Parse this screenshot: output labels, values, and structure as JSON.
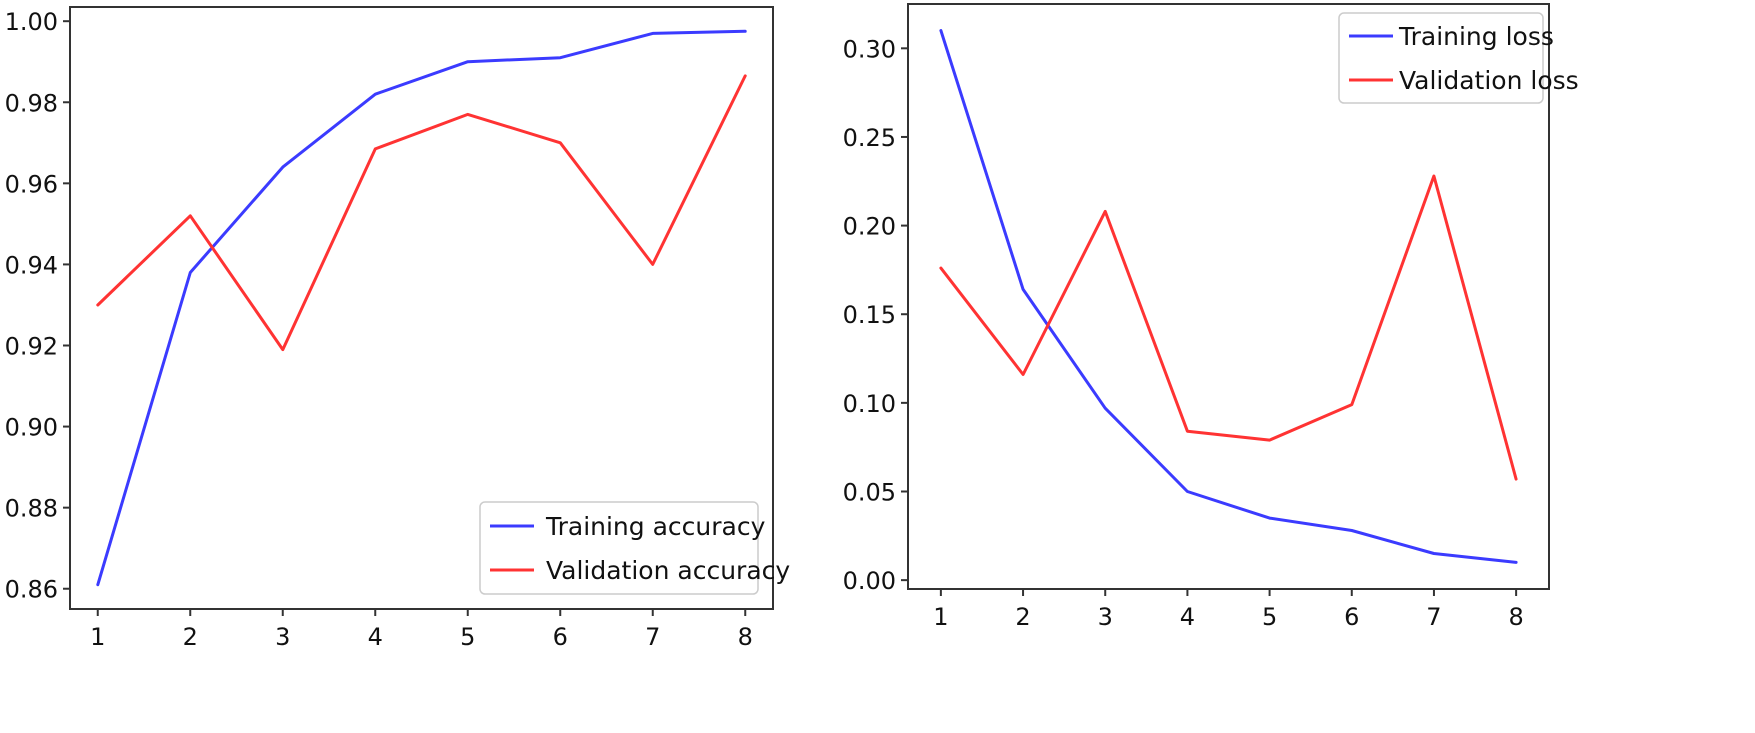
{
  "chart_data": [
    {
      "type": "line",
      "title": "",
      "xlabel": "",
      "ylabel": "",
      "x": [
        1,
        2,
        3,
        4,
        5,
        6,
        7,
        8
      ],
      "xlim": [
        0.7,
        8.3
      ],
      "ylim": [
        0.855,
        1.0035
      ],
      "yticks": [
        0.86,
        0.88,
        0.9,
        0.92,
        0.94,
        0.96,
        0.98,
        1.0
      ],
      "ytick_labels": [
        "0.86",
        "0.88",
        "0.90",
        "0.92",
        "0.94",
        "0.96",
        "0.98",
        "1.00"
      ],
      "legend_position": "lower-right",
      "series": [
        {
          "name": "Training accuracy",
          "color": "#3b3bff",
          "values": [
            0.861,
            0.938,
            0.964,
            0.982,
            0.99,
            0.991,
            0.997,
            0.9975
          ]
        },
        {
          "name": "Validation accuracy",
          "color": "#ff3333",
          "values": [
            0.93,
            0.952,
            0.919,
            0.9685,
            0.977,
            0.97,
            0.94,
            0.9865
          ]
        }
      ]
    },
    {
      "type": "line",
      "title": "",
      "xlabel": "",
      "ylabel": "",
      "x": [
        1,
        2,
        3,
        4,
        5,
        6,
        7,
        8
      ],
      "xlim": [
        0.6,
        8.4
      ],
      "ylim": [
        -0.005,
        0.325
      ],
      "yticks": [
        0.0,
        0.05,
        0.1,
        0.15,
        0.2,
        0.25,
        0.3
      ],
      "ytick_labels": [
        "0.00",
        "0.05",
        "0.10",
        "0.15",
        "0.20",
        "0.25",
        "0.30"
      ],
      "legend_position": "upper-right",
      "series": [
        {
          "name": "Training loss",
          "color": "#3b3bff",
          "values": [
            0.31,
            0.164,
            0.097,
            0.05,
            0.035,
            0.028,
            0.015,
            0.01
          ]
        },
        {
          "name": "Validation loss",
          "color": "#ff3333",
          "values": [
            0.176,
            0.116,
            0.208,
            0.084,
            0.079,
            0.099,
            0.228,
            0.057
          ]
        }
      ]
    }
  ]
}
